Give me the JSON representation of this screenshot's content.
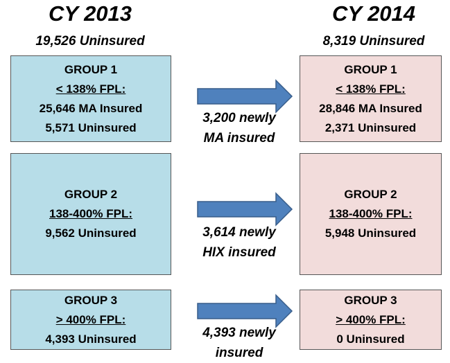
{
  "columns": [
    {
      "year": "CY 2013",
      "total": "19,526 Uninsured",
      "groups": [
        {
          "title": "GROUP 1",
          "fpl": "< 138% FPL:",
          "lines": [
            "25,646 MA Insured",
            "5,571 Uninsured"
          ]
        },
        {
          "title": "GROUP 2",
          "fpl": "138-400% FPL:",
          "lines": [
            "9,562 Uninsured"
          ]
        },
        {
          "title": "GROUP 3",
          "fpl": "> 400% FPL:",
          "lines": [
            "4,393 Uninsured"
          ]
        }
      ]
    },
    {
      "year": "CY 2014",
      "total": "8,319 Uninsured",
      "groups": [
        {
          "title": "GROUP 1",
          "fpl": "< 138% FPL:",
          "lines": [
            "28,846 MA Insured",
            "2,371 Uninsured"
          ]
        },
        {
          "title": "GROUP 2",
          "fpl": "138-400% FPL:",
          "lines": [
            "5,948 Uninsured"
          ]
        },
        {
          "title": "GROUP 3",
          "fpl": "> 400% FPL:",
          "lines": [
            "0 Uninsured"
          ]
        }
      ]
    }
  ],
  "transitions": [
    {
      "lines": [
        "3,200 newly",
        "MA insured"
      ]
    },
    {
      "lines": [
        "3,614 newly",
        "HIX insured"
      ]
    },
    {
      "lines": [
        "4,393 newly",
        "insured"
      ]
    }
  ]
}
